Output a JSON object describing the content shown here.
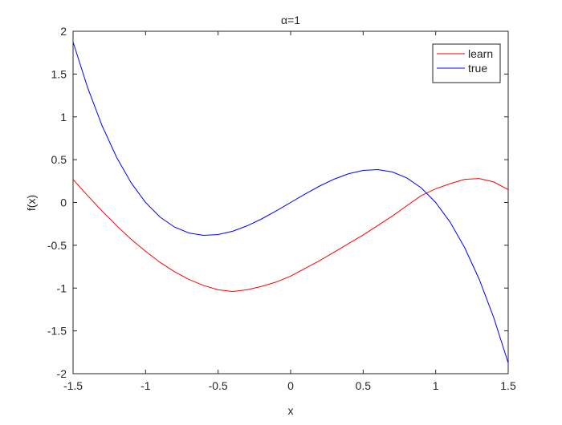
{
  "chart_data": {
    "type": "line",
    "title": "α=1",
    "x_label": "x",
    "y_label": "f(x)",
    "x": [
      -1.5,
      -1.4,
      -1.3,
      -1.2,
      -1.1,
      -1.0,
      -0.9,
      -0.8,
      -0.7,
      -0.6,
      -0.5,
      -0.4,
      -0.3,
      -0.2,
      -0.1,
      0,
      0.1,
      0.2,
      0.3,
      0.4,
      0.5,
      0.6,
      0.7,
      0.8,
      0.9,
      1.0,
      1.1,
      1.2,
      1.3,
      1.4,
      1.5
    ],
    "series": [
      {
        "name": "learn",
        "color": "#ff0000",
        "values": [
          0.27,
          0.08,
          -0.1,
          -0.27,
          -0.43,
          -0.57,
          -0.7,
          -0.81,
          -0.9,
          -0.97,
          -1.02,
          -1.04,
          -1.02,
          -0.98,
          -0.93,
          -0.86,
          -0.77,
          -0.68,
          -0.58,
          -0.48,
          -0.38,
          -0.27,
          -0.16,
          -0.04,
          0.08,
          0.16,
          0.22,
          0.27,
          0.28,
          0.24,
          0.15
        ]
      },
      {
        "name": "true",
        "color": "#0000ff",
        "values": [
          1.875,
          1.344,
          0.897,
          0.528,
          0.231,
          0,
          -0.171,
          -0.288,
          -0.357,
          -0.384,
          -0.375,
          -0.336,
          -0.273,
          -0.192,
          -0.099,
          0,
          0.099,
          0.192,
          0.273,
          0.336,
          0.375,
          0.384,
          0.357,
          0.288,
          0.171,
          0,
          -0.231,
          -0.528,
          -0.897,
          -1.344,
          -1.875
        ]
      }
    ],
    "xlim": [
      -1.5,
      1.5
    ],
    "ylim": [
      -2,
      2
    ],
    "xticks": [
      -1.5,
      -1,
      -0.5,
      0,
      0.5,
      1,
      1.5
    ],
    "yticks": [
      -2,
      -1.5,
      -1,
      -0.5,
      0,
      0.5,
      1,
      1.5,
      2
    ],
    "legend": "top-right"
  }
}
